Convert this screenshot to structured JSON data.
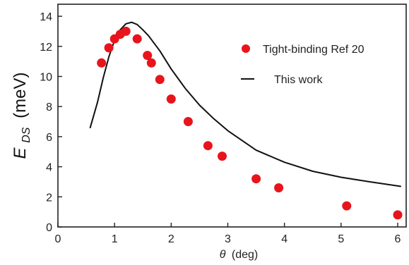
{
  "chart_data": {
    "type": "scatter",
    "xlabel_symbol": "θ",
    "xlabel_units": "(deg)",
    "ylabel_symbol": "E",
    "ylabel_subscript": "DS",
    "ylabel_units": "(meV)",
    "xlim": [
      0,
      6.15
    ],
    "ylim": [
      0,
      14.8
    ],
    "x_ticks": [
      0,
      1,
      2,
      3,
      4,
      5,
      6
    ],
    "y_ticks": [
      0,
      2,
      4,
      6,
      8,
      10,
      12,
      14
    ],
    "grid": false,
    "legend_position": "top-right",
    "series": [
      {
        "name": "Tight-binding Ref 20",
        "kind": "scatter",
        "color": "#e8141c",
        "points": [
          [
            0.77,
            10.9
          ],
          [
            0.9,
            11.9
          ],
          [
            1.0,
            12.5
          ],
          [
            1.1,
            12.8
          ],
          [
            1.2,
            13.0
          ],
          [
            1.4,
            12.5
          ],
          [
            1.58,
            11.4
          ],
          [
            1.65,
            10.9
          ],
          [
            1.8,
            9.8
          ],
          [
            2.0,
            8.5
          ],
          [
            2.3,
            7.0
          ],
          [
            2.65,
            5.4
          ],
          [
            2.9,
            4.7
          ],
          [
            3.5,
            3.2
          ],
          [
            3.9,
            2.6
          ],
          [
            5.1,
            1.4
          ],
          [
            6.0,
            0.8
          ]
        ]
      },
      {
        "name": "This work",
        "kind": "line",
        "color": "#111111",
        "points": [
          [
            0.57,
            6.6
          ],
          [
            0.7,
            8.3
          ],
          [
            0.8,
            9.9
          ],
          [
            0.9,
            11.3
          ],
          [
            1.0,
            12.4
          ],
          [
            1.1,
            13.1
          ],
          [
            1.2,
            13.5
          ],
          [
            1.3,
            13.6
          ],
          [
            1.4,
            13.45
          ],
          [
            1.5,
            13.1
          ],
          [
            1.6,
            12.7
          ],
          [
            1.8,
            11.7
          ],
          [
            2.0,
            10.5
          ],
          [
            2.25,
            9.2
          ],
          [
            2.5,
            8.1
          ],
          [
            2.75,
            7.2
          ],
          [
            3.0,
            6.4
          ],
          [
            3.5,
            5.1
          ],
          [
            4.0,
            4.3
          ],
          [
            4.5,
            3.7
          ],
          [
            5.0,
            3.3
          ],
          [
            5.5,
            3.0
          ],
          [
            6.05,
            2.7
          ]
        ]
      }
    ]
  }
}
